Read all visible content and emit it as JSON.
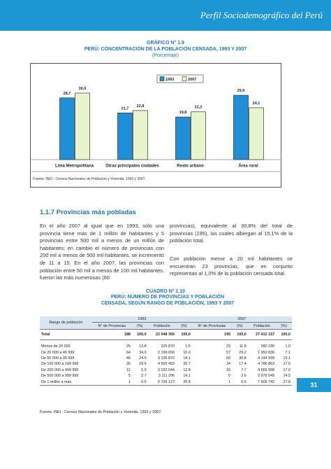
{
  "header": {
    "title": "Perfil Sociodemográfico del Perú",
    "page": "31"
  },
  "chart_data": {
    "type": "bar",
    "number": "GRÁFICO N° 1.9",
    "title": "PERÚ: CONCENTRACIÓN DE LA POBLACIÓN CENSADA, 1993 Y 2007",
    "subtitle": "(Porcentaje)",
    "categories": [
      "Lima Metropolitana",
      "Otras principales ciudades",
      "Resto urbano",
      "Área rural"
    ],
    "series": [
      {
        "name": "1993",
        "color": "#1e90d8",
        "values": [
          28.7,
          21.7,
          19.8,
          29.9
        ],
        "value_labels": [
          "28,7",
          "21,7",
          "19,8",
          "29,9"
        ]
      },
      {
        "name": "2007",
        "color": "#e8f5cc",
        "values": [
          30.9,
          22.8,
          22.2,
          24.1
        ],
        "value_labels": [
          "30,9",
          "22,8",
          "22,2",
          "24,1"
        ]
      }
    ],
    "legend": "top",
    "source": "Fuente: INEI - Censos Nacionales de Población y Vivienda. 1993 y 2007."
  },
  "section": {
    "title": "1.1.7 Provincias más pobladas",
    "paragraphs": [
      "En el año 2007 al igual que en 1993, sólo una provincia tiene más de 1 millón de habitantes y 5 provincias entre 500 mil a menos de un millón de habitantes; en cambio el número de provincias con 200 mil a menos de 500 mil habitantes, se incrementó de 11 a 15. En el año 2007, las provincias con población entre 50 mil a menos de 100 mil habitantes, fueron las más numerosas (60",
      "provincias), equivalente al 30,8% del total de provincias (195), las cuales albergan al 15,1% de la población total.",
      "Con población menor a 20 mil habitantes se encuentran 23 provincias, que en conjunto representan al 1,0% de la población censada total."
    ]
  },
  "table": {
    "number": "CUADRO N° 1.10",
    "title": "PERÚ: NÚMERO DE PROVINCIAS Y POBLACIÓN CENSADA, SEGÚN RANGO DE POBLACIÓN, 1993 Y 2007",
    "range_header": "Rango de población",
    "years": [
      "1993",
      "2007"
    ],
    "columns": [
      "N° de Provincias",
      "(%)",
      "Población",
      "(%)"
    ],
    "rows": [
      [
        "Total",
        "188",
        "100,0",
        "22 048 356",
        "100,0",
        "195",
        "100,0",
        "27 412 157",
        "100,0"
      ],
      [
        "Menos de 20 000",
        "26",
        "13.8",
        "325 870",
        "1.5",
        "23",
        "11.8",
        "280 230",
        "1.0"
      ],
      [
        "De 20  000 a 49 999",
        "64",
        "34.0",
        "2 199 656",
        "10.0",
        "57",
        "29.2",
        "1 950 836",
        "7.1"
      ],
      [
        "De 50 000  a 99 999",
        "46",
        "24.5",
        "3 106 870",
        "14.1",
        "60",
        "30.8",
        "4 144 939",
        "15.1"
      ],
      [
        "De 100 000 a 199 999",
        "35",
        "18.6",
        "4 565 493",
        "20.7",
        "34",
        "17.4",
        "4 786 863",
        "17.5"
      ],
      [
        "De 200 000 a 499 999",
        "11",
        "5.9",
        "3 033 044",
        "13.8",
        "15",
        "7.7",
        "4 666 998",
        "17.0"
      ],
      [
        "De 500 000 a 999 999",
        "5",
        "2.7",
        "3 111 296",
        "14.1",
        "5",
        "2.6",
        "3 976 549",
        "14.5"
      ],
      [
        "De 1 millón a más",
        "1",
        "0.5",
        "5 706 127",
        "25.8",
        "1",
        "0.5",
        "7 605 742",
        "27.8"
      ]
    ],
    "source": "Fuente: INEI - Censos Nacionales de Población y Vivienda. 1993 y 2007."
  }
}
